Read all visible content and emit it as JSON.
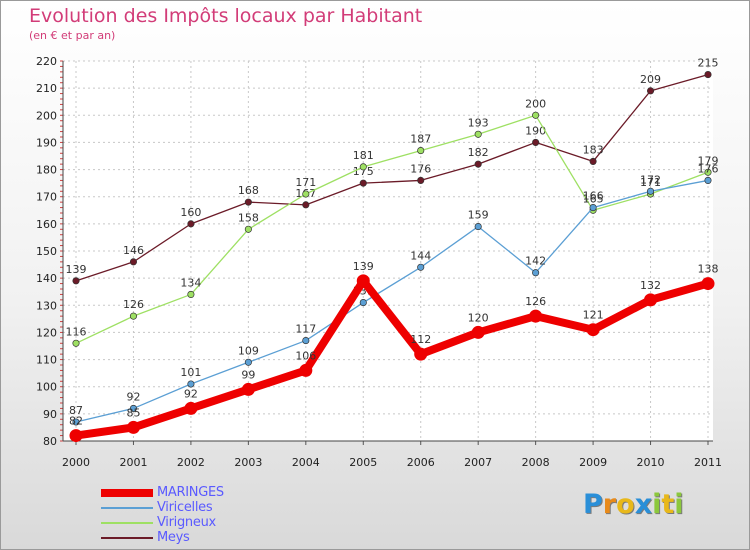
{
  "chart_data": {
    "type": "line",
    "title": "Evolution des Impôts locaux par Habitant",
    "subtitle": "(en € et par an)",
    "x": [
      "2000",
      "2001",
      "2002",
      "2003",
      "2004",
      "2005",
      "2006",
      "2007",
      "2008",
      "2009",
      "2010",
      "2011"
    ],
    "yticks": [
      "80",
      "90",
      "100",
      "110",
      "120",
      "130",
      "140",
      "150",
      "160",
      "170",
      "180",
      "190",
      "200",
      "210",
      "220"
    ],
    "ylim": [
      80,
      220
    ],
    "grid": true,
    "legend_position": "bottom-left",
    "series": [
      {
        "name": "Meys",
        "color": "#6b1b28",
        "values": [
          139,
          146,
          160,
          168,
          167,
          175,
          176,
          182,
          190,
          183,
          209,
          215
        ],
        "labels": [
          "139",
          "146",
          "160",
          "168",
          "167",
          "175",
          "176",
          "182",
          "190",
          "183",
          "209",
          "215"
        ]
      },
      {
        "name": "Virigneux",
        "color": "#9ee063",
        "values": [
          116,
          126,
          134,
          158,
          171,
          181,
          187,
          193,
          200,
          165,
          171,
          179
        ],
        "labels": [
          "116",
          "126",
          "134",
          "158",
          "171",
          "181",
          "187",
          "193",
          "200",
          "165",
          "171",
          "179"
        ]
      },
      {
        "name": "Viricelles",
        "color": "#5b9fd4",
        "values": [
          87,
          92,
          101,
          109,
          117,
          131,
          144,
          159,
          142,
          166,
          172,
          176
        ],
        "labels": [
          "87",
          "92",
          "101",
          "109",
          "117",
          "131",
          "144",
          "159",
          "142",
          "166",
          "172",
          "176"
        ]
      },
      {
        "name": "MARINGES",
        "color": "#ee0000",
        "values": [
          82,
          85,
          92,
          99,
          106,
          139,
          112,
          120,
          126,
          121,
          132,
          138
        ],
        "labels": [
          "82",
          "85",
          "92",
          "99",
          "106",
          "139",
          "112",
          "120",
          "126",
          "121",
          "132",
          "138"
        ]
      }
    ]
  },
  "legend": [
    {
      "label": "MARINGES",
      "color": "#ee0000",
      "text_color": "#5a5aff"
    },
    {
      "label": "Viricelles",
      "color": "#5b9fd4",
      "text_color": "#5a5aff"
    },
    {
      "label": "Virigneux",
      "color": "#9ee063",
      "text_color": "#5a5aff"
    },
    {
      "label": "Meys",
      "color": "#6b1b28",
      "text_color": "#5a5aff"
    }
  ],
  "logo": {
    "letters": [
      "P",
      "r",
      "o",
      "x",
      "i",
      "t",
      "i"
    ],
    "colors": [
      "#2a8fd8",
      "#e88a1a",
      "#e8b81a",
      "#2a8fd8",
      "#8cc83c",
      "#e8b81a",
      "#8cc83c"
    ]
  }
}
